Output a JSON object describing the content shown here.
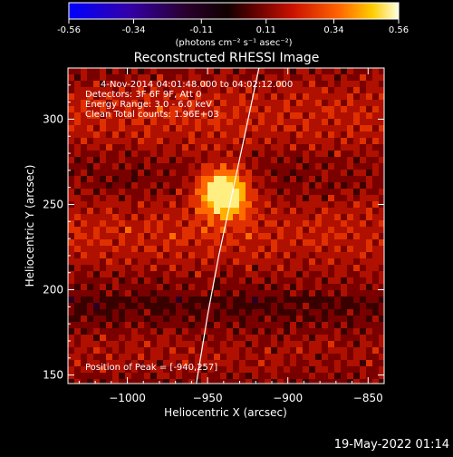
{
  "colorbar": {
    "ticks": [
      "-0.56",
      "-0.34",
      "-0.11",
      "0.11",
      "0.34",
      "0.56"
    ],
    "tick_values": [
      -0.56,
      -0.34,
      -0.11,
      0.11,
      0.34,
      0.56
    ],
    "range": [
      -0.56,
      0.56
    ],
    "unit_label": "(photons cm⁻² s⁻¹ asec⁻²)",
    "colors": [
      "#0000ff",
      "#4b0082",
      "#300030",
      "#000000",
      "#8b0000",
      "#ff3300",
      "#ffaa00",
      "#ffffcc"
    ]
  },
  "chart_data": {
    "type": "heatmap",
    "title": "Reconstructed RHESSI Image",
    "xlabel": "Heliocentric X (arcsec)",
    "ylabel": "Heliocentric Y (arcsec)",
    "xlim": [
      -1037,
      -840
    ],
    "ylim": [
      145,
      330
    ],
    "x_ticks": [
      -1000,
      -950,
      -900,
      -850
    ],
    "x_tick_labels": [
      "−1000",
      "−950",
      "−900",
      "−850"
    ],
    "y_ticks": [
      150,
      200,
      250,
      300
    ],
    "y_tick_labels": [
      "150",
      "200",
      "250",
      "300"
    ],
    "peak": {
      "x": -940,
      "y": 257
    },
    "annotations": [
      "4-Nov-2014 04:01:48.000 to 04:02:12.000",
      "Detectors: 3F 6F 9F, Att 0",
      "Energy Range: 3.0 - 6.0 keV",
      "Clean    Total counts: 1.96E+03"
    ],
    "peak_label": "Position of Peak = [-940,257]",
    "limb_curve_points": [
      {
        "x": -957,
        "y": 145
      },
      {
        "x": -950,
        "y": 185
      },
      {
        "x": -943,
        "y": 220
      },
      {
        "x": -935,
        "y": 255
      },
      {
        "x": -927,
        "y": 290
      },
      {
        "x": -918,
        "y": 330
      }
    ]
  },
  "footer": {
    "timestamp": "19-May-2022 01:14"
  }
}
